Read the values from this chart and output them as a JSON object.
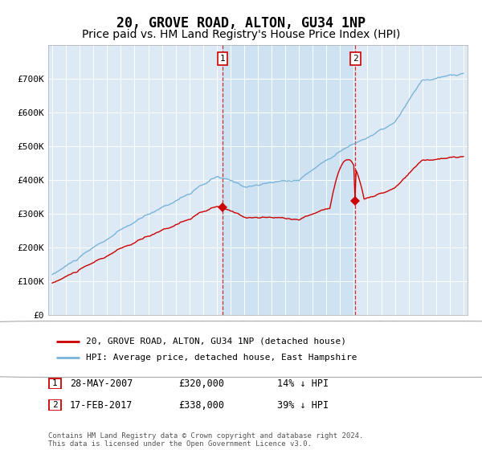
{
  "title": "20, GROVE ROAD, ALTON, GU34 1NP",
  "subtitle": "Price paid vs. HM Land Registry's House Price Index (HPI)",
  "title_fontsize": 12,
  "subtitle_fontsize": 10,
  "ylim": [
    0,
    800000
  ],
  "yticks": [
    0,
    100000,
    200000,
    300000,
    400000,
    500000,
    600000,
    700000
  ],
  "ytick_labels": [
    "£0",
    "£100K",
    "£200K",
    "£300K",
    "£400K",
    "£500K",
    "£600K",
    "£700K"
  ],
  "hpi_color": "#7ab4d8",
  "price_color": "#cc0000",
  "background_color": "#ddeaf5",
  "shade_color": "#c8dff0",
  "legend_label_price": "20, GROVE ROAD, ALTON, GU34 1NP (detached house)",
  "legend_label_hpi": "HPI: Average price, detached house, East Hampshire",
  "annotation1_date": "28-MAY-2007",
  "annotation1_price": "£320,000",
  "annotation1_pct": "14% ↓ HPI",
  "annotation2_date": "17-FEB-2017",
  "annotation2_price": "£338,000",
  "annotation2_pct": "39% ↓ HPI",
  "footer": "Contains HM Land Registry data © Crown copyright and database right 2024.\nThis data is licensed under the Open Government Licence v3.0.",
  "sale1_x": 2007.41,
  "sale1_y": 320000,
  "sale2_x": 2017.12,
  "sale2_y": 338000,
  "xmin": 1995,
  "xmax": 2025
}
